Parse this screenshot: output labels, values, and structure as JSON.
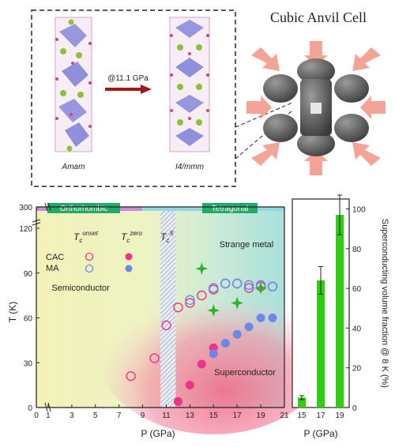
{
  "top": {
    "left_label": "Amam",
    "right_label": "I4/mmm",
    "arrow_label": "@11.1 GPa",
    "cell_title": "Cubic Anvil Cell"
  },
  "phase_labels": {
    "ortho": "Orthorhombic",
    "tetra": "Tetragonal"
  },
  "regions": {
    "semi": "Semiconductor",
    "strange": "Strange metal",
    "sc": "Superconductor"
  },
  "legend": {
    "tc_onset_base": "T",
    "tc_onset_sub": "c",
    "tc_onset_sup": "onset",
    "tc_zero_base": "T",
    "tc_zero_sub": "c",
    "tc_zero_sup": "zero",
    "tc_x_base": "T",
    "tc_x_sub": "c",
    "tc_x_sup": "X",
    "row1": "CAC",
    "row2": "MA"
  },
  "axes": {
    "ylabel": "T (K)",
    "xlabel": "P (GPa)",
    "xlabel_bar": "P (GPa)",
    "ylabel_bar": "Superconducting volume fraction @ 8 K (%)"
  },
  "colors": {
    "cac": "#ee3388",
    "ma": "#6d87e8",
    "tcx": "#2cb52c",
    "bar": "#33cc11"
  },
  "chart_data": [
    {
      "type": "scatter",
      "xlabel": "P (GPa)",
      "ylabel": "T (K)",
      "xlim": [
        0,
        21
      ],
      "ylim": [
        0,
        300
      ],
      "x_ticks": [
        0,
        1,
        3,
        5,
        7,
        9,
        11,
        13,
        15,
        17,
        19,
        21
      ],
      "y_ticks": [
        0,
        30,
        60,
        90,
        120,
        300
      ],
      "x_tick_labels": [
        "0",
        "1",
        "3",
        "5",
        "7",
        "9",
        "11",
        "13",
        "15",
        "17",
        "19",
        "21"
      ],
      "y_tick_labels": [
        "0",
        "30",
        "60",
        "90",
        "120",
        "300"
      ],
      "phase_boundary_gpa": 11.1,
      "series": [
        {
          "marker": "open-circle-pink",
          "x": [
            8,
            10,
            11,
            12,
            13,
            14,
            15,
            16,
            17,
            18,
            19,
            20
          ],
          "y": [
            21,
            33,
            55,
            67,
            70,
            75,
            79,
            83,
            83,
            80,
            81,
            81
          ]
        },
        {
          "marker": "open-circle-blue",
          "x": [
            13,
            15,
            16,
            17,
            18,
            19,
            20
          ],
          "y": [
            72,
            80,
            83,
            83,
            82,
            82,
            81
          ]
        },
        {
          "marker": "filled-circle-pink",
          "x": [
            12,
            13,
            14,
            15
          ],
          "y": [
            4,
            15,
            29,
            40
          ]
        },
        {
          "marker": "filled-circle-blue",
          "x": [
            15,
            16,
            17,
            18,
            19,
            20
          ],
          "y": [
            36,
            43,
            49,
            54,
            60,
            60
          ]
        },
        {
          "marker": "star-green",
          "x": [
            14,
            15,
            17,
            19
          ],
          "y": [
            93,
            65,
            70,
            80
          ]
        }
      ]
    },
    {
      "type": "bar",
      "categories": [
        "15",
        "17",
        "19"
      ],
      "values": [
        5,
        64,
        97
      ],
      "errors": [
        1,
        7,
        10
      ],
      "ylim": [
        0,
        105
      ],
      "y_ticks": [
        0,
        20,
        40,
        60,
        80,
        100
      ],
      "y_tick_labels": [
        "0",
        "20",
        "40",
        "60",
        "80",
        "100"
      ],
      "xlabel": "P (GPa)",
      "ylabel": "Superconducting volume fraction @ 8 K (%)"
    }
  ]
}
